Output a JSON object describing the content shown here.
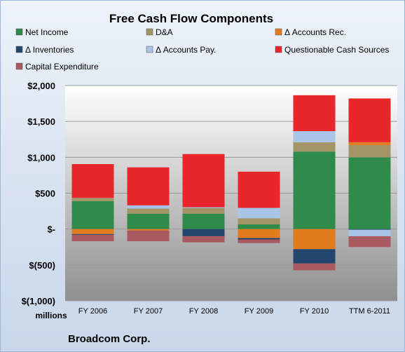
{
  "chart_data": {
    "type": "bar",
    "stacked": true,
    "title": "Free Cash Flow Components",
    "ylabel": "",
    "xlabel": "",
    "unit_label": "millions",
    "company_label": "Broadcom Corp.",
    "ylim": [
      -1000,
      2000
    ],
    "yticks": [
      2000,
      1500,
      1000,
      500,
      0,
      -500,
      -1000
    ],
    "ytick_labels": [
      "$2,000",
      "$1,500",
      "$1,000",
      "$500",
      "$-",
      "$(500)",
      "$(1,000)"
    ],
    "grid": true,
    "legend_position": "top",
    "categories": [
      "FY 2006",
      "FY 2007",
      "FY 2008",
      "FY 2009",
      "FY 2010",
      "TTM 6-2011"
    ],
    "series": [
      {
        "name": "Net Income",
        "color": "#2e8b4a",
        "values": [
          390,
          215,
          215,
          65,
          1080,
          1000
        ]
      },
      {
        "name": "D&A",
        "color": "#a39566",
        "values": [
          45,
          70,
          80,
          85,
          130,
          170
        ]
      },
      {
        "name": "Δ Accounts Rec.",
        "color": "#e07b1e",
        "values": [
          -70,
          -20,
          0,
          -125,
          -280,
          40
        ]
      },
      {
        "name": "Δ Inventories",
        "color": "#24466e",
        "values": [
          -10,
          0,
          -100,
          -20,
          -200,
          -10
        ]
      },
      {
        "name": "Δ Accounts Pay.",
        "color": "#a8c4e6",
        "values": [
          0,
          45,
          10,
          145,
          155,
          -90
        ]
      },
      {
        "name": "Questionable Cash Sources",
        "color": "#e8262b",
        "values": [
          470,
          530,
          740,
          505,
          500,
          610
        ]
      },
      {
        "name": "Capital Expenditure",
        "color": "#a85a60",
        "values": [
          -90,
          -150,
          -85,
          -50,
          -95,
          -150
        ]
      }
    ]
  }
}
